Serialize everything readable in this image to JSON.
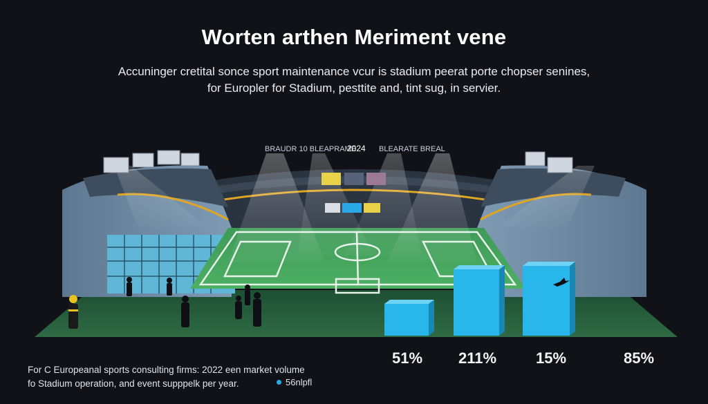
{
  "header": {
    "title": "Worten arthen Meriment vene",
    "subtitle_line1": "Accuninger cretital sonce sport maintenance vcur is stadium peerat porte chopser senines,",
    "subtitle_line2": "for Europler for Stadium, pesttite and, tint sug, in servier."
  },
  "scoreboard": {
    "left_text": "BRAUDR 10  BLEAPRAME",
    "year": "2024",
    "right_text": "BLEARATE  BREAL"
  },
  "chart_data": {
    "type": "bar",
    "values_label": [
      "51%",
      "211%",
      "15%",
      "85%"
    ],
    "bar_color": "#29b6ea"
  },
  "footer": {
    "line1": "For C Europeanal sports consulting firms:  2022 een market volume",
    "line2": "fo Stadium operation, and event supppelk per year.",
    "legend_label": "56nlpfl"
  },
  "colors": {
    "background": "#111217",
    "pitch": "#3ea05a",
    "accent": "#29b6ea"
  }
}
